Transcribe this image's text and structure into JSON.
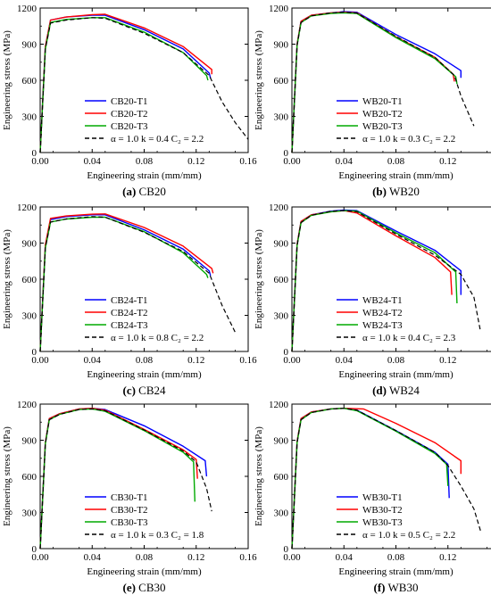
{
  "figure": {
    "x_axis_label": "Engineering strain (mm/mm)",
    "y_axis_label": "Engineering stress (MPa)"
  },
  "chart_data": [
    {
      "type": "line",
      "caption_letter": "(a)",
      "caption_name": "CB20",
      "xlim": [
        0,
        0.16
      ],
      "ylim": [
        0,
        1200
      ],
      "xticks": [
        "0.00",
        "0.04",
        "0.08",
        "0.12",
        "0.16"
      ],
      "yticks": [
        "0",
        "300",
        "600",
        "900",
        "1200"
      ],
      "series": [
        {
          "name": "CB20-T1",
          "color": "#0000ff",
          "dash": false,
          "x": [
            0,
            0.004,
            0.008,
            0.02,
            0.04,
            0.05,
            0.08,
            0.11,
            0.13,
            0.131
          ],
          "y": [
            0,
            880,
            1100,
            1125,
            1140,
            1140,
            1020,
            860,
            660,
            620
          ]
        },
        {
          "name": "CB20-T2",
          "color": "#ff0000",
          "dash": false,
          "x": [
            0,
            0.004,
            0.008,
            0.02,
            0.04,
            0.05,
            0.08,
            0.11,
            0.132,
            0.132
          ],
          "y": [
            0,
            880,
            1100,
            1125,
            1145,
            1148,
            1035,
            880,
            690,
            650
          ]
        },
        {
          "name": "CB20-T3",
          "color": "#00aa00",
          "dash": false,
          "x": [
            0,
            0.004,
            0.008,
            0.02,
            0.04,
            0.05,
            0.08,
            0.11,
            0.128,
            0.129
          ],
          "y": [
            0,
            860,
            1080,
            1105,
            1120,
            1120,
            1000,
            830,
            640,
            600
          ]
        },
        {
          "name": "α = 1.0 k = 0.4 C₂ = 2.2",
          "color": "#000000",
          "dash": true,
          "x": [
            0,
            0.004,
            0.008,
            0.02,
            0.04,
            0.05,
            0.08,
            0.11,
            0.13,
            0.14,
            0.15,
            0.16
          ],
          "y": [
            0,
            860,
            1075,
            1100,
            1120,
            1115,
            990,
            830,
            640,
            420,
            250,
            110
          ]
        }
      ]
    },
    {
      "type": "line",
      "caption_letter": "(b)",
      "caption_name": "WB20",
      "xlim": [
        0,
        0.16
      ],
      "ylim": [
        0,
        1200
      ],
      "xticks": [
        "0.00",
        "0.04",
        "0.08",
        "0.12",
        "0.16"
      ],
      "yticks": [
        "0",
        "300",
        "600",
        "900",
        "1200"
      ],
      "series": [
        {
          "name": "WB20-T1",
          "color": "#0000ff",
          "dash": false,
          "x": [
            0,
            0.004,
            0.007,
            0.015,
            0.03,
            0.04,
            0.05,
            0.08,
            0.11,
            0.13,
            0.13
          ],
          "y": [
            0,
            900,
            1090,
            1140,
            1160,
            1170,
            1165,
            980,
            820,
            680,
            620
          ]
        },
        {
          "name": "WB20-T2",
          "color": "#ff0000",
          "dash": false,
          "x": [
            0,
            0.004,
            0.007,
            0.015,
            0.03,
            0.04,
            0.05,
            0.08,
            0.11,
            0.124,
            0.125
          ],
          "y": [
            0,
            900,
            1090,
            1140,
            1160,
            1165,
            1160,
            960,
            790,
            650,
            590
          ]
        },
        {
          "name": "WB20-T3",
          "color": "#00aa00",
          "dash": false,
          "x": [
            0,
            0.004,
            0.007,
            0.015,
            0.03,
            0.04,
            0.05,
            0.08,
            0.11,
            0.126,
            0.127
          ],
          "y": [
            0,
            890,
            1080,
            1135,
            1155,
            1160,
            1155,
            955,
            780,
            630,
            570
          ]
        },
        {
          "name": "α = 1.0 k = 0.3 C₂ = 2.2",
          "color": "#000000",
          "dash": true,
          "x": [
            0,
            0.004,
            0.007,
            0.015,
            0.03,
            0.04,
            0.05,
            0.08,
            0.11,
            0.125,
            0.13,
            0.14
          ],
          "y": [
            0,
            890,
            1080,
            1135,
            1160,
            1165,
            1158,
            965,
            790,
            640,
            470,
            220
          ]
        }
      ]
    },
    {
      "type": "line",
      "caption_letter": "(c)",
      "caption_name": "CB24",
      "xlim": [
        0,
        0.16
      ],
      "ylim": [
        0,
        1200
      ],
      "xticks": [
        "0.00",
        "0.04",
        "0.08",
        "0.12",
        "0.16"
      ],
      "yticks": [
        "0",
        "300",
        "600",
        "900",
        "1200"
      ],
      "series": [
        {
          "name": "CB24-T1",
          "color": "#0000ff",
          "dash": false,
          "x": [
            0,
            0.004,
            0.008,
            0.02,
            0.04,
            0.05,
            0.08,
            0.11,
            0.13,
            0.131
          ],
          "y": [
            0,
            880,
            1095,
            1120,
            1135,
            1135,
            1010,
            850,
            670,
            630
          ]
        },
        {
          "name": "CB24-T2",
          "color": "#ff0000",
          "dash": false,
          "x": [
            0,
            0.004,
            0.008,
            0.02,
            0.04,
            0.05,
            0.08,
            0.11,
            0.132,
            0.133
          ],
          "y": [
            0,
            885,
            1105,
            1125,
            1140,
            1142,
            1030,
            875,
            690,
            650
          ]
        },
        {
          "name": "CB24-T3",
          "color": "#00aa00",
          "dash": false,
          "x": [
            0,
            0.004,
            0.008,
            0.02,
            0.04,
            0.05,
            0.08,
            0.11,
            0.128,
            0.129
          ],
          "y": [
            0,
            860,
            1075,
            1100,
            1115,
            1115,
            995,
            820,
            640,
            610
          ]
        },
        {
          "name": "α = 1.0 k = 0.8 C₂ = 2.2",
          "color": "#000000",
          "dash": true,
          "x": [
            0,
            0.004,
            0.008,
            0.02,
            0.04,
            0.05,
            0.08,
            0.11,
            0.13,
            0.14,
            0.15
          ],
          "y": [
            0,
            860,
            1075,
            1100,
            1120,
            1115,
            990,
            830,
            650,
            380,
            160
          ]
        }
      ]
    },
    {
      "type": "line",
      "caption_letter": "(d)",
      "caption_name": "WB24",
      "xlim": [
        0,
        0.16
      ],
      "ylim": [
        0,
        1200
      ],
      "xticks": [
        "0.00",
        "0.04",
        "0.08",
        "0.12",
        "0.16"
      ],
      "yticks": [
        "0",
        "300",
        "600",
        "900",
        "1200"
      ],
      "series": [
        {
          "name": "WB24-T1",
          "color": "#0000ff",
          "dash": false,
          "x": [
            0,
            0.004,
            0.007,
            0.015,
            0.03,
            0.04,
            0.05,
            0.08,
            0.11,
            0.13,
            0.13
          ],
          "y": [
            0,
            890,
            1080,
            1135,
            1165,
            1175,
            1170,
            1000,
            840,
            670,
            470
          ]
        },
        {
          "name": "WB24-T2",
          "color": "#ff0000",
          "dash": false,
          "x": [
            0,
            0.004,
            0.007,
            0.015,
            0.03,
            0.04,
            0.05,
            0.08,
            0.11,
            0.122,
            0.123
          ],
          "y": [
            0,
            890,
            1080,
            1135,
            1160,
            1170,
            1150,
            960,
            780,
            660,
            470
          ]
        },
        {
          "name": "WB24-T3",
          "color": "#00aa00",
          "dash": false,
          "x": [
            0,
            0.004,
            0.007,
            0.015,
            0.03,
            0.04,
            0.05,
            0.08,
            0.11,
            0.126,
            0.127
          ],
          "y": [
            0,
            880,
            1070,
            1130,
            1160,
            1170,
            1165,
            985,
            820,
            660,
            400
          ]
        },
        {
          "name": "α = 1.0 k = 0.4 C₂ = 2.3",
          "color": "#000000",
          "dash": true,
          "x": [
            0,
            0.004,
            0.007,
            0.015,
            0.03,
            0.04,
            0.05,
            0.08,
            0.11,
            0.13,
            0.14,
            0.145
          ],
          "y": [
            0,
            880,
            1070,
            1130,
            1165,
            1170,
            1160,
            975,
            800,
            640,
            450,
            170
          ]
        }
      ]
    },
    {
      "type": "line",
      "caption_letter": "(e)",
      "caption_name": "CB30",
      "xlim": [
        0,
        0.16
      ],
      "ylim": [
        0,
        1200
      ],
      "xticks": [
        "0.00",
        "0.04",
        "0.08",
        "0.12",
        "0.16"
      ],
      "yticks": [
        "0",
        "300",
        "600",
        "900",
        "1200"
      ],
      "series": [
        {
          "name": "CB30-T1",
          "color": "#0000ff",
          "dash": false,
          "x": [
            0,
            0.004,
            0.007,
            0.015,
            0.03,
            0.04,
            0.05,
            0.08,
            0.11,
            0.127,
            0.128
          ],
          "y": [
            0,
            880,
            1080,
            1120,
            1160,
            1165,
            1155,
            1020,
            850,
            730,
            600
          ]
        },
        {
          "name": "CB30-T2",
          "color": "#ff0000",
          "dash": false,
          "x": [
            0,
            0.004,
            0.007,
            0.015,
            0.03,
            0.04,
            0.05,
            0.08,
            0.11,
            0.12,
            0.121
          ],
          "y": [
            0,
            880,
            1080,
            1120,
            1160,
            1165,
            1150,
            990,
            820,
            740,
            580
          ]
        },
        {
          "name": "CB30-T3",
          "color": "#00aa00",
          "dash": false,
          "x": [
            0,
            0.004,
            0.007,
            0.015,
            0.03,
            0.04,
            0.05,
            0.08,
            0.11,
            0.118,
            0.119
          ],
          "y": [
            0,
            870,
            1070,
            1115,
            1155,
            1160,
            1140,
            980,
            800,
            720,
            390
          ]
        },
        {
          "name": "α = 1.0 k = 0.3 C₂ = 1.8",
          "color": "#000000",
          "dash": true,
          "x": [
            0,
            0.004,
            0.007,
            0.015,
            0.03,
            0.04,
            0.05,
            0.08,
            0.11,
            0.12,
            0.128,
            0.132
          ],
          "y": [
            0,
            870,
            1070,
            1115,
            1155,
            1160,
            1145,
            985,
            810,
            720,
            500,
            310
          ]
        }
      ]
    },
    {
      "type": "line",
      "caption_letter": "(f)",
      "caption_name": "WB30",
      "xlim": [
        0,
        0.16
      ],
      "ylim": [
        0,
        1200
      ],
      "xticks": [
        "0.00",
        "0.04",
        "0.08",
        "0.12",
        "0.16"
      ],
      "yticks": [
        "0",
        "300",
        "600",
        "900",
        "1200"
      ],
      "series": [
        {
          "name": "WB30-T1",
          "color": "#0000ff",
          "dash": false,
          "x": [
            0,
            0.004,
            0.007,
            0.015,
            0.03,
            0.04,
            0.05,
            0.08,
            0.11,
            0.12,
            0.121
          ],
          "y": [
            0,
            890,
            1080,
            1135,
            1160,
            1165,
            1150,
            980,
            800,
            700,
            420
          ]
        },
        {
          "name": "WB30-T2",
          "color": "#ff0000",
          "dash": false,
          "x": [
            0,
            0.004,
            0.007,
            0.015,
            0.03,
            0.04,
            0.055,
            0.08,
            0.11,
            0.13,
            0.13
          ],
          "y": [
            0,
            890,
            1080,
            1135,
            1160,
            1165,
            1160,
            1040,
            880,
            730,
            620
          ]
        },
        {
          "name": "WB30-T3",
          "color": "#00aa00",
          "dash": false,
          "x": [
            0,
            0.004,
            0.007,
            0.015,
            0.03,
            0.04,
            0.05,
            0.08,
            0.11,
            0.119,
            0.12
          ],
          "y": [
            0,
            880,
            1070,
            1130,
            1160,
            1165,
            1145,
            975,
            790,
            700,
            520
          ]
        },
        {
          "name": "α = 1.0 k = 0.5 C₂ = 2.2",
          "color": "#000000",
          "dash": true,
          "x": [
            0,
            0.004,
            0.007,
            0.015,
            0.03,
            0.04,
            0.05,
            0.08,
            0.11,
            0.12,
            0.13,
            0.14,
            0.145
          ],
          "y": [
            0,
            880,
            1070,
            1130,
            1160,
            1165,
            1150,
            980,
            800,
            690,
            520,
            330,
            150
          ]
        }
      ]
    }
  ]
}
